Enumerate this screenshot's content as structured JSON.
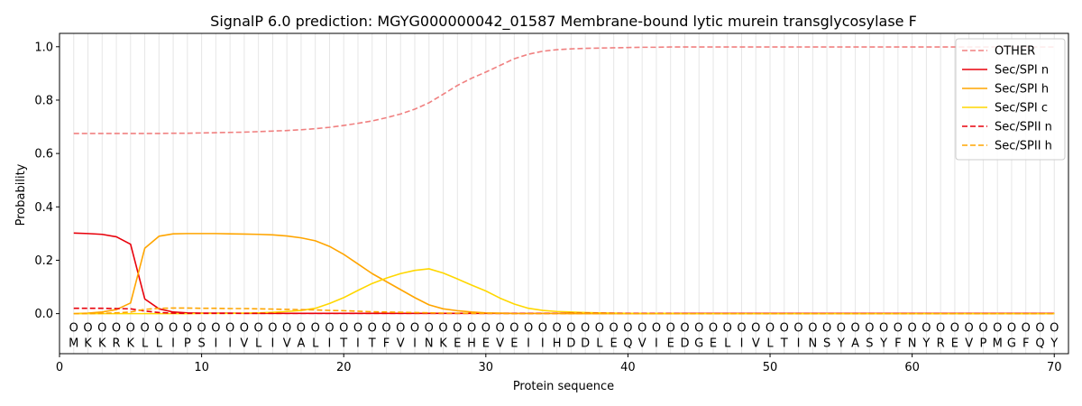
{
  "chart_data": {
    "type": "line",
    "title": "SignalP 6.0 prediction: MGYG000000042_01587 Membrane-bound lytic murein transglycosylase F",
    "xlabel": "Protein sequence",
    "ylabel": "Probability",
    "xlim": [
      0,
      71
    ],
    "ylim": [
      -0.15,
      1.05
    ],
    "xticks": [
      0,
      10,
      20,
      30,
      40,
      50,
      60,
      70
    ],
    "yticks": [
      0.0,
      0.2,
      0.4,
      0.6,
      0.8,
      1.0
    ],
    "ytick_labels": [
      "0.0",
      "0.2",
      "0.4",
      "0.6",
      "0.8",
      "1.0"
    ],
    "legend_position": "top-right",
    "sequence": [
      "M",
      "K",
      "K",
      "R",
      "K",
      "L",
      "L",
      "I",
      "P",
      "S",
      "I",
      "I",
      "V",
      "L",
      "I",
      "V",
      "A",
      "L",
      "I",
      "T",
      "I",
      "T",
      "F",
      "V",
      "I",
      "N",
      "K",
      "E",
      "H",
      "E",
      "V",
      "E",
      "I",
      "I",
      "H",
      "D",
      "D",
      "L",
      "E",
      "Q",
      "V",
      "I",
      "E",
      "D",
      "G",
      "E",
      "L",
      "I",
      "V",
      "L",
      "T",
      "I",
      "N",
      "S",
      "Y",
      "A",
      "S",
      "Y",
      "F",
      "N",
      "Y",
      "R",
      "E",
      "V",
      "P",
      "M",
      "G",
      "F",
      "Q",
      "Y"
    ],
    "position_marker": "O",
    "series": [
      {
        "name": "OTHER",
        "color": "#f08080",
        "dashed": true,
        "values": [
          0.675,
          0.675,
          0.675,
          0.675,
          0.675,
          0.675,
          0.675,
          0.676,
          0.676,
          0.677,
          0.678,
          0.679,
          0.68,
          0.682,
          0.684,
          0.686,
          0.689,
          0.693,
          0.698,
          0.705,
          0.713,
          0.722,
          0.734,
          0.748,
          0.766,
          0.79,
          0.822,
          0.855,
          0.882,
          0.905,
          0.93,
          0.955,
          0.972,
          0.983,
          0.989,
          0.992,
          0.994,
          0.995,
          0.996,
          0.997,
          0.998,
          0.998,
          0.999,
          0.999,
          0.999,
          0.999,
          0.999,
          0.999,
          0.999,
          0.999,
          0.999,
          0.999,
          0.999,
          0.999,
          0.999,
          0.999,
          0.999,
          0.999,
          0.999,
          0.999,
          0.999,
          0.999,
          0.999,
          0.999,
          0.999,
          0.999,
          0.999,
          0.999,
          0.999,
          0.999
        ]
      },
      {
        "name": "Sec/SPI n",
        "color": "#e8000b",
        "dashed": false,
        "values": [
          0.302,
          0.3,
          0.297,
          0.288,
          0.26,
          0.055,
          0.018,
          0.006,
          0.003,
          0.002,
          0.002,
          0.002,
          0.001,
          0.001,
          0.001,
          0.001,
          0.001,
          0.001,
          0.001,
          0.001,
          0.001,
          0.001,
          0.001,
          0.001,
          0.001,
          0.001,
          0.001,
          0.001,
          0.001,
          0.001,
          0.001,
          0.001,
          0.001,
          0.001,
          0.001,
          0.001,
          0.001,
          0.001,
          0.001,
          0.001,
          0.001,
          0.001,
          0.001,
          0.001,
          0.001,
          0.001,
          0.001,
          0.001,
          0.001,
          0.001,
          0.001,
          0.001,
          0.001,
          0.001,
          0.001,
          0.001,
          0.001,
          0.001,
          0.001,
          0.001,
          0.001,
          0.001,
          0.001,
          0.001,
          0.001,
          0.001,
          0.001,
          0.001,
          0.001,
          0.001
        ]
      },
      {
        "name": "Sec/SPI h",
        "color": "#ffa500",
        "dashed": false,
        "values": [
          0.0,
          0.002,
          0.006,
          0.015,
          0.04,
          0.245,
          0.29,
          0.299,
          0.3,
          0.3,
          0.3,
          0.299,
          0.298,
          0.297,
          0.295,
          0.291,
          0.284,
          0.273,
          0.252,
          0.222,
          0.186,
          0.15,
          0.12,
          0.09,
          0.06,
          0.033,
          0.018,
          0.011,
          0.006,
          0.003,
          0.002,
          0.001,
          0.001,
          0.001,
          0.001,
          0.0,
          0.0,
          0.0,
          0.0,
          0.0,
          0.0,
          0.0,
          0.0,
          0.0,
          0.0,
          0.0,
          0.0,
          0.0,
          0.0,
          0.0,
          0.0,
          0.0,
          0.0,
          0.0,
          0.0,
          0.0,
          0.0,
          0.0,
          0.0,
          0.0,
          0.0,
          0.0,
          0.0,
          0.0,
          0.0,
          0.0,
          0.0,
          0.0,
          0.0,
          0.0
        ]
      },
      {
        "name": "Sec/SPI c",
        "color": "#ffd700",
        "dashed": false,
        "values": [
          0.0,
          0.0,
          0.0,
          0.0,
          0.0,
          0.0,
          0.0,
          0.0,
          0.0,
          0.001,
          0.001,
          0.001,
          0.002,
          0.003,
          0.005,
          0.008,
          0.012,
          0.02,
          0.038,
          0.06,
          0.087,
          0.113,
          0.133,
          0.15,
          0.162,
          0.168,
          0.152,
          0.13,
          0.107,
          0.085,
          0.058,
          0.036,
          0.02,
          0.012,
          0.008,
          0.006,
          0.004,
          0.003,
          0.002,
          0.001,
          0.001,
          0.001,
          0.001,
          0.0,
          0.0,
          0.0,
          0.0,
          0.0,
          0.0,
          0.0,
          0.0,
          0.0,
          0.0,
          0.0,
          0.0,
          0.0,
          0.0,
          0.0,
          0.0,
          0.0,
          0.0,
          0.0,
          0.0,
          0.0,
          0.0,
          0.0,
          0.0,
          0.0,
          0.0,
          0.0
        ]
      },
      {
        "name": "Sec/SPII n",
        "color": "#e8000b",
        "dashed": true,
        "values": [
          0.02,
          0.02,
          0.02,
          0.019,
          0.018,
          0.01,
          0.004,
          0.002,
          0.001,
          0.001,
          0.001,
          0.001,
          0.001,
          0.001,
          0.001,
          0.001,
          0.001,
          0.001,
          0.001,
          0.001,
          0.001,
          0.001,
          0.001,
          0.001,
          0.001,
          0.001,
          0.001,
          0.001,
          0.001,
          0.001,
          0.001,
          0.001,
          0.001,
          0.001,
          0.001,
          0.001,
          0.001,
          0.001,
          0.001,
          0.001,
          0.001,
          0.001,
          0.001,
          0.001,
          0.001,
          0.001,
          0.001,
          0.001,
          0.001,
          0.001,
          0.001,
          0.001,
          0.001,
          0.001,
          0.001,
          0.001,
          0.001,
          0.001,
          0.001,
          0.001,
          0.001,
          0.001,
          0.001,
          0.001,
          0.001,
          0.001,
          0.001,
          0.001,
          0.001,
          0.001
        ]
      },
      {
        "name": "Sec/SPII h",
        "color": "#ffa500",
        "dashed": true,
        "values": [
          0.0,
          0.0,
          0.001,
          0.003,
          0.006,
          0.016,
          0.02,
          0.021,
          0.021,
          0.02,
          0.02,
          0.019,
          0.019,
          0.018,
          0.017,
          0.016,
          0.015,
          0.014,
          0.012,
          0.011,
          0.009,
          0.007,
          0.006,
          0.005,
          0.004,
          0.003,
          0.002,
          0.002,
          0.001,
          0.001,
          0.001,
          0.0,
          0.0,
          0.0,
          0.0,
          0.0,
          0.0,
          0.0,
          0.0,
          0.0,
          0.0,
          0.0,
          0.0,
          0.0,
          0.0,
          0.0,
          0.0,
          0.0,
          0.0,
          0.0,
          0.0,
          0.0,
          0.0,
          0.0,
          0.0,
          0.0,
          0.0,
          0.0,
          0.0,
          0.0,
          0.0,
          0.0,
          0.0,
          0.0,
          0.0,
          0.0,
          0.0,
          0.0,
          0.0,
          0.0
        ]
      }
    ]
  }
}
